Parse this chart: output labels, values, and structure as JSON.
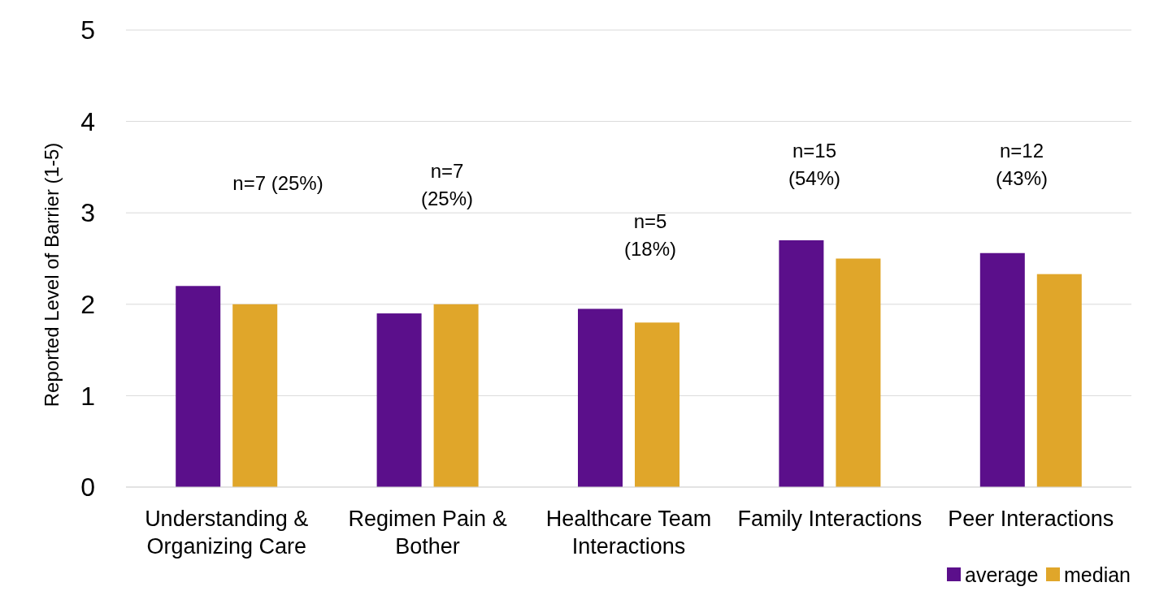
{
  "chart_data": {
    "type": "bar",
    "ylabel": "Reported Level of Barrier (1-5)",
    "categories": [
      "Understanding & Organizing Care",
      "Regimen Pain & Bother",
      "Healthcare Team Interactions",
      "Family Interactions",
      "Peer Interactions"
    ],
    "series": [
      {
        "name": "average",
        "color": "#5b0f8b",
        "values": [
          2.2,
          1.9,
          1.95,
          2.7,
          2.56
        ]
      },
      {
        "name": "median",
        "color": "#e0a62a",
        "values": [
          2.0,
          2.0,
          1.8,
          2.5,
          2.33
        ]
      }
    ],
    "ylim": [
      0,
      5
    ],
    "yticks": [
      0,
      1,
      2,
      3,
      4,
      5
    ],
    "grid": "y",
    "legend": "bottom right",
    "annotations": [
      "n=7 (25%)",
      "n=7\n(25%)",
      "n=5\n(18%)",
      "n=15\n(54%)",
      "n=12\n(43%)"
    ]
  }
}
